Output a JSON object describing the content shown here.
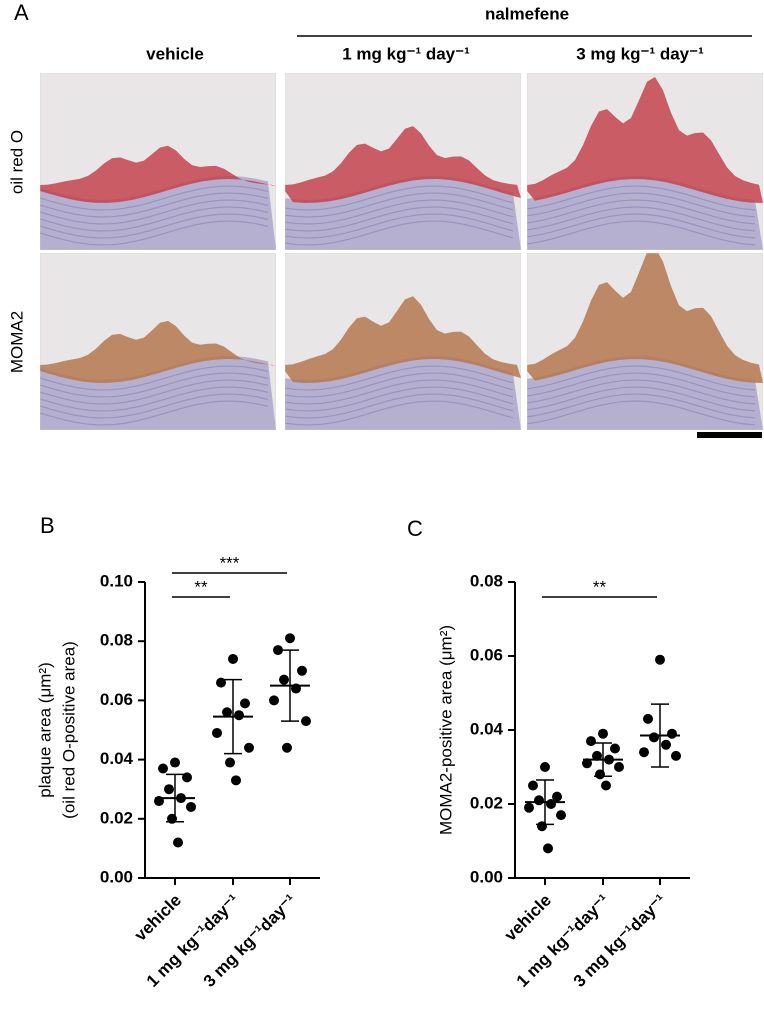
{
  "figure": {
    "panel_a": {
      "label": "A",
      "group_header": "nalmefene",
      "columns": [
        "vehicle",
        "1 mg kg⁻¹ day⁻¹",
        "3 mg kg⁻¹ day⁻¹"
      ],
      "rows": [
        "oil red O",
        "MOMA2"
      ]
    }
  },
  "chart_data": [
    {
      "type": "dotplot",
      "panel_label": "B",
      "y_label": [
        "plaque area (μm²)",
        "(oil red O-positive area)"
      ],
      "categories": [
        "vehicle",
        "1 mg kg⁻¹day⁻¹",
        "3 mg kg⁻¹day⁻¹"
      ],
      "points": [
        [
          0.039,
          0.037,
          0.034,
          0.03,
          0.027,
          0.026,
          0.024,
          0.02,
          0.012
        ],
        [
          0.074,
          0.066,
          0.059,
          0.056,
          0.055,
          0.049,
          0.044,
          0.039,
          0.033
        ],
        [
          0.081,
          0.077,
          0.07,
          0.067,
          0.064,
          0.06,
          0.053,
          0.044
        ]
      ],
      "means": [
        0.027,
        0.0545,
        0.065
      ],
      "sd": [
        0.008,
        0.0125,
        0.012
      ],
      "color": "#000000",
      "ylim": [
        0,
        0.1
      ],
      "yticks": [
        {
          "value": 0,
          "label": "0.00"
        },
        {
          "value": 0.02,
          "label": "0.02"
        },
        {
          "value": 0.04,
          "label": "0.04"
        },
        {
          "value": 0.06,
          "label": "0.06"
        },
        {
          "value": 0.08,
          "label": "0.08"
        },
        {
          "value": 0.1,
          "label": "0.10"
        }
      ],
      "significance": [
        {
          "from": 0,
          "to": 1,
          "label": "**"
        },
        {
          "from": 0,
          "to": 2,
          "label": "***"
        }
      ]
    },
    {
      "type": "dotplot",
      "panel_label": "C",
      "y_label": [
        "MOMA2-positive area (μm²)"
      ],
      "categories": [
        "vehicle",
        "1 mg kg⁻¹day⁻¹",
        "3 mg kg⁻¹day⁻¹"
      ],
      "points": [
        [
          0.03,
          0.025,
          0.022,
          0.021,
          0.02,
          0.019,
          0.017,
          0.014,
          0.008
        ],
        [
          0.039,
          0.037,
          0.035,
          0.033,
          0.032,
          0.031,
          0.03,
          0.028,
          0.025
        ],
        [
          0.059,
          0.043,
          0.039,
          0.038,
          0.036,
          0.034,
          0.033
        ]
      ],
      "means": [
        0.0205,
        0.032,
        0.0385
      ],
      "sd": [
        0.006,
        0.0045,
        0.0085
      ],
      "color": "#000000",
      "ylim": [
        0,
        0.08
      ],
      "yticks": [
        {
          "value": 0,
          "label": "0.00"
        },
        {
          "value": 0.02,
          "label": "0.02"
        },
        {
          "value": 0.04,
          "label": "0.04"
        },
        {
          "value": 0.06,
          "label": "0.06"
        },
        {
          "value": 0.08,
          "label": "0.08"
        }
      ],
      "significance": [
        {
          "from": 0,
          "to": 2,
          "label": "**"
        }
      ]
    }
  ]
}
